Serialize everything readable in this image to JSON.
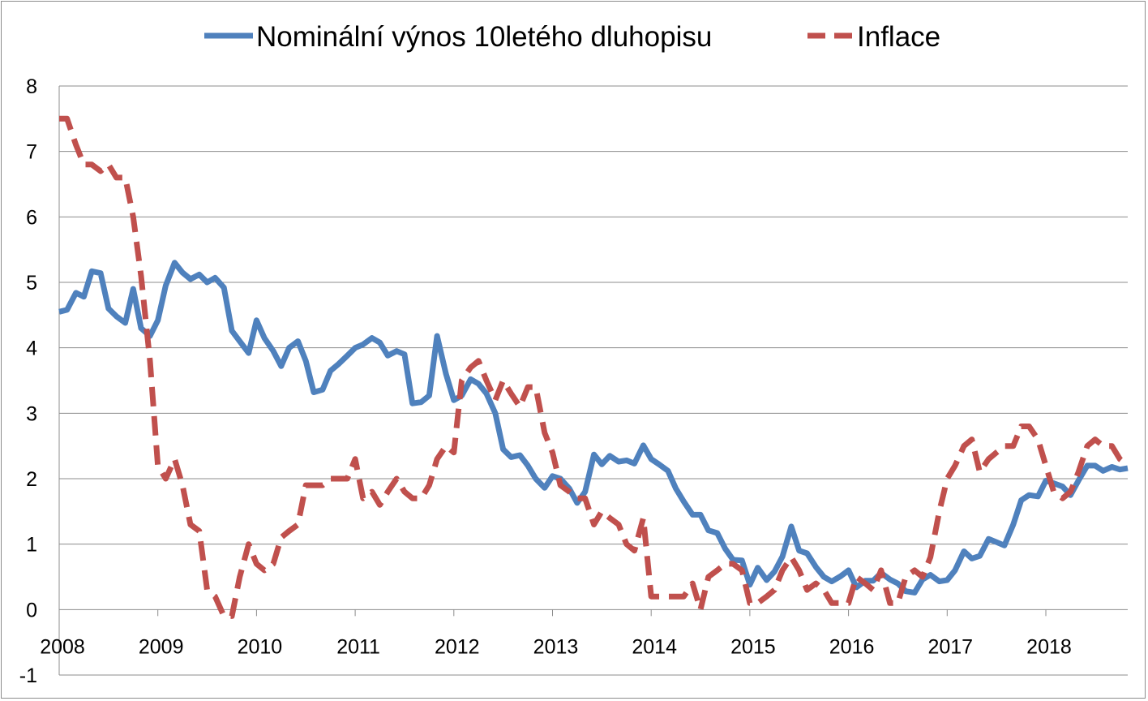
{
  "chart_data": {
    "type": "line",
    "title": "",
    "xlabel": "",
    "ylabel": "",
    "x_ticks": [
      "2008",
      "2009",
      "2010",
      "2011",
      "2012",
      "2013",
      "2014",
      "2015",
      "2016",
      "2017",
      "2018"
    ],
    "y_ticks": [
      "-1",
      "0",
      "1",
      "2",
      "3",
      "4",
      "5",
      "6",
      "7",
      "8"
    ],
    "xlim": [
      2008,
      2018.83
    ],
    "ylim": [
      -1,
      8
    ],
    "grid": "horizontal",
    "legend_position": "top",
    "series": [
      {
        "name": "Nominální výnos 10letého dluhopisu",
        "color": "#4f81bd",
        "dash": "solid",
        "points": [
          [
            2008.0,
            4.55
          ],
          [
            2008.08,
            4.58
          ],
          [
            2008.17,
            4.84
          ],
          [
            2008.25,
            4.78
          ],
          [
            2008.33,
            5.17
          ],
          [
            2008.42,
            5.14
          ],
          [
            2008.5,
            4.6
          ],
          [
            2008.58,
            4.48
          ],
          [
            2008.67,
            4.38
          ],
          [
            2008.75,
            4.9
          ],
          [
            2008.83,
            4.3
          ],
          [
            2008.92,
            4.18
          ],
          [
            2009.0,
            4.42
          ],
          [
            2009.08,
            4.95
          ],
          [
            2009.17,
            5.3
          ],
          [
            2009.25,
            5.15
          ],
          [
            2009.33,
            5.05
          ],
          [
            2009.42,
            5.12
          ],
          [
            2009.5,
            5.0
          ],
          [
            2009.58,
            5.07
          ],
          [
            2009.67,
            4.92
          ],
          [
            2009.75,
            4.26
          ],
          [
            2009.83,
            4.1
          ],
          [
            2009.92,
            3.92
          ],
          [
            2010.0,
            4.42
          ],
          [
            2010.08,
            4.15
          ],
          [
            2010.17,
            3.95
          ],
          [
            2010.25,
            3.72
          ],
          [
            2010.33,
            4.0
          ],
          [
            2010.42,
            4.1
          ],
          [
            2010.5,
            3.8
          ],
          [
            2010.58,
            3.32
          ],
          [
            2010.67,
            3.36
          ],
          [
            2010.75,
            3.65
          ],
          [
            2010.83,
            3.75
          ],
          [
            2010.92,
            3.88
          ],
          [
            2011.0,
            4.0
          ],
          [
            2011.08,
            4.05
          ],
          [
            2011.17,
            4.15
          ],
          [
            2011.25,
            4.08
          ],
          [
            2011.33,
            3.88
          ],
          [
            2011.42,
            3.95
          ],
          [
            2011.5,
            3.9
          ],
          [
            2011.58,
            3.15
          ],
          [
            2011.67,
            3.17
          ],
          [
            2011.75,
            3.27
          ],
          [
            2011.83,
            4.18
          ],
          [
            2011.92,
            3.6
          ],
          [
            2012.0,
            3.2
          ],
          [
            2012.08,
            3.27
          ],
          [
            2012.17,
            3.52
          ],
          [
            2012.25,
            3.45
          ],
          [
            2012.33,
            3.3
          ],
          [
            2012.42,
            3.0
          ],
          [
            2012.5,
            2.45
          ],
          [
            2012.58,
            2.33
          ],
          [
            2012.67,
            2.36
          ],
          [
            2012.75,
            2.2
          ],
          [
            2012.83,
            2.0
          ],
          [
            2012.92,
            1.86
          ],
          [
            2013.0,
            2.04
          ],
          [
            2013.08,
            2.0
          ],
          [
            2013.17,
            1.85
          ],
          [
            2013.25,
            1.63
          ],
          [
            2013.33,
            1.8
          ],
          [
            2013.42,
            2.37
          ],
          [
            2013.5,
            2.22
          ],
          [
            2013.58,
            2.35
          ],
          [
            2013.67,
            2.26
          ],
          [
            2013.75,
            2.28
          ],
          [
            2013.83,
            2.23
          ],
          [
            2013.92,
            2.51
          ],
          [
            2014.0,
            2.3
          ],
          [
            2014.08,
            2.22
          ],
          [
            2014.17,
            2.12
          ],
          [
            2014.25,
            1.85
          ],
          [
            2014.33,
            1.65
          ],
          [
            2014.42,
            1.45
          ],
          [
            2014.5,
            1.45
          ],
          [
            2014.58,
            1.21
          ],
          [
            2014.67,
            1.17
          ],
          [
            2014.75,
            0.93
          ],
          [
            2014.83,
            0.76
          ],
          [
            2014.92,
            0.75
          ],
          [
            2015.0,
            0.38
          ],
          [
            2015.08,
            0.64
          ],
          [
            2015.17,
            0.45
          ],
          [
            2015.25,
            0.58
          ],
          [
            2015.33,
            0.81
          ],
          [
            2015.42,
            1.27
          ],
          [
            2015.5,
            0.9
          ],
          [
            2015.58,
            0.86
          ],
          [
            2015.67,
            0.65
          ],
          [
            2015.75,
            0.5
          ],
          [
            2015.83,
            0.43
          ],
          [
            2015.92,
            0.51
          ],
          [
            2016.0,
            0.6
          ],
          [
            2016.08,
            0.34
          ],
          [
            2016.17,
            0.44
          ],
          [
            2016.25,
            0.44
          ],
          [
            2016.33,
            0.56
          ],
          [
            2016.42,
            0.46
          ],
          [
            2016.5,
            0.4
          ],
          [
            2016.58,
            0.28
          ],
          [
            2016.67,
            0.26
          ],
          [
            2016.75,
            0.46
          ],
          [
            2016.83,
            0.53
          ],
          [
            2016.92,
            0.43
          ],
          [
            2017.0,
            0.45
          ],
          [
            2017.08,
            0.6
          ],
          [
            2017.17,
            0.89
          ],
          [
            2017.25,
            0.78
          ],
          [
            2017.33,
            0.82
          ],
          [
            2017.42,
            1.08
          ],
          [
            2017.5,
            1.03
          ],
          [
            2017.58,
            0.98
          ],
          [
            2017.67,
            1.3
          ],
          [
            2017.75,
            1.67
          ],
          [
            2017.83,
            1.75
          ],
          [
            2017.92,
            1.73
          ],
          [
            2018.0,
            1.97
          ],
          [
            2018.08,
            1.93
          ],
          [
            2018.17,
            1.88
          ],
          [
            2018.25,
            1.75
          ],
          [
            2018.33,
            1.97
          ],
          [
            2018.42,
            2.2
          ],
          [
            2018.5,
            2.2
          ],
          [
            2018.58,
            2.12
          ],
          [
            2018.67,
            2.18
          ],
          [
            2018.75,
            2.14
          ],
          [
            2018.83,
            2.16
          ]
        ]
      },
      {
        "name": "Inflace",
        "color": "#c0504d",
        "dash": "dashed",
        "points": [
          [
            2008.0,
            7.5
          ],
          [
            2008.08,
            7.5
          ],
          [
            2008.17,
            7.1
          ],
          [
            2008.25,
            6.8
          ],
          [
            2008.33,
            6.8
          ],
          [
            2008.42,
            6.7
          ],
          [
            2008.5,
            6.8
          ],
          [
            2008.58,
            6.6
          ],
          [
            2008.67,
            6.6
          ],
          [
            2008.75,
            6.0
          ],
          [
            2008.83,
            5.1
          ],
          [
            2008.92,
            3.8
          ],
          [
            2009.0,
            2.2
          ],
          [
            2009.08,
            2.0
          ],
          [
            2009.17,
            2.3
          ],
          [
            2009.25,
            1.9
          ],
          [
            2009.33,
            1.3
          ],
          [
            2009.42,
            1.2
          ],
          [
            2009.5,
            0.3
          ],
          [
            2009.58,
            0.2
          ],
          [
            2009.67,
            -0.1
          ],
          [
            2009.75,
            -0.1
          ],
          [
            2009.83,
            0.5
          ],
          [
            2009.92,
            1.0
          ],
          [
            2010.0,
            0.7
          ],
          [
            2010.08,
            0.6
          ],
          [
            2010.17,
            0.7
          ],
          [
            2010.25,
            1.1
          ],
          [
            2010.33,
            1.2
          ],
          [
            2010.42,
            1.3
          ],
          [
            2010.5,
            1.9
          ],
          [
            2010.58,
            1.9
          ],
          [
            2010.67,
            1.9
          ],
          [
            2010.75,
            2.0
          ],
          [
            2010.83,
            2.0
          ],
          [
            2010.92,
            2.0
          ],
          [
            2011.0,
            2.3
          ],
          [
            2011.08,
            1.7
          ],
          [
            2011.17,
            1.8
          ],
          [
            2011.25,
            1.6
          ],
          [
            2011.33,
            1.8
          ],
          [
            2011.42,
            2.0
          ],
          [
            2011.5,
            1.8
          ],
          [
            2011.58,
            1.7
          ],
          [
            2011.67,
            1.7
          ],
          [
            2011.75,
            1.9
          ],
          [
            2011.83,
            2.3
          ],
          [
            2011.92,
            2.5
          ],
          [
            2012.0,
            2.4
          ],
          [
            2012.08,
            3.5
          ],
          [
            2012.17,
            3.7
          ],
          [
            2012.25,
            3.8
          ],
          [
            2012.33,
            3.5
          ],
          [
            2012.42,
            3.2
          ],
          [
            2012.5,
            3.5
          ],
          [
            2012.58,
            3.3
          ],
          [
            2012.67,
            3.1
          ],
          [
            2012.75,
            3.4
          ],
          [
            2012.83,
            3.4
          ],
          [
            2012.92,
            2.7
          ],
          [
            2013.0,
            2.4
          ],
          [
            2013.08,
            1.9
          ],
          [
            2013.17,
            1.8
          ],
          [
            2013.25,
            1.7
          ],
          [
            2013.33,
            1.7
          ],
          [
            2013.42,
            1.3
          ],
          [
            2013.5,
            1.5
          ],
          [
            2013.58,
            1.4
          ],
          [
            2013.67,
            1.3
          ],
          [
            2013.75,
            1.0
          ],
          [
            2013.83,
            0.9
          ],
          [
            2013.92,
            1.4
          ],
          [
            2014.0,
            0.2
          ],
          [
            2014.08,
            0.2
          ],
          [
            2014.17,
            0.2
          ],
          [
            2014.25,
            0.2
          ],
          [
            2014.33,
            0.2
          ],
          [
            2014.42,
            0.4
          ],
          [
            2014.5,
            0.0
          ],
          [
            2014.58,
            0.5
          ],
          [
            2014.67,
            0.6
          ],
          [
            2014.75,
            0.7
          ],
          [
            2014.83,
            0.7
          ],
          [
            2014.92,
            0.6
          ],
          [
            2015.0,
            0.1
          ],
          [
            2015.08,
            0.1
          ],
          [
            2015.17,
            0.2
          ],
          [
            2015.25,
            0.3
          ],
          [
            2015.33,
            0.6
          ],
          [
            2015.42,
            0.8
          ],
          [
            2015.5,
            0.6
          ],
          [
            2015.58,
            0.3
          ],
          [
            2015.67,
            0.4
          ],
          [
            2015.75,
            0.3
          ],
          [
            2015.83,
            0.1
          ],
          [
            2015.92,
            0.1
          ],
          [
            2016.0,
            0.1
          ],
          [
            2016.08,
            0.5
          ],
          [
            2016.17,
            0.4
          ],
          [
            2016.25,
            0.3
          ],
          [
            2016.33,
            0.6
          ],
          [
            2016.42,
            0.1
          ],
          [
            2016.5,
            0.1
          ],
          [
            2016.58,
            0.5
          ],
          [
            2016.67,
            0.6
          ],
          [
            2016.75,
            0.5
          ],
          [
            2016.83,
            0.8
          ],
          [
            2016.92,
            1.5
          ],
          [
            2017.0,
            2.0
          ],
          [
            2017.08,
            2.2
          ],
          [
            2017.17,
            2.5
          ],
          [
            2017.25,
            2.6
          ],
          [
            2017.33,
            2.1
          ],
          [
            2017.42,
            2.3
          ],
          [
            2017.5,
            2.4
          ],
          [
            2017.58,
            2.5
          ],
          [
            2017.67,
            2.5
          ],
          [
            2017.75,
            2.8
          ],
          [
            2017.83,
            2.8
          ],
          [
            2017.92,
            2.6
          ],
          [
            2018.0,
            2.2
          ],
          [
            2018.08,
            1.8
          ],
          [
            2018.17,
            1.7
          ],
          [
            2018.25,
            1.8
          ],
          [
            2018.33,
            2.1
          ],
          [
            2018.42,
            2.5
          ],
          [
            2018.5,
            2.6
          ],
          [
            2018.58,
            2.5
          ],
          [
            2018.67,
            2.5
          ],
          [
            2018.75,
            2.3
          ],
          [
            2018.83,
            2.2
          ]
        ]
      }
    ]
  }
}
